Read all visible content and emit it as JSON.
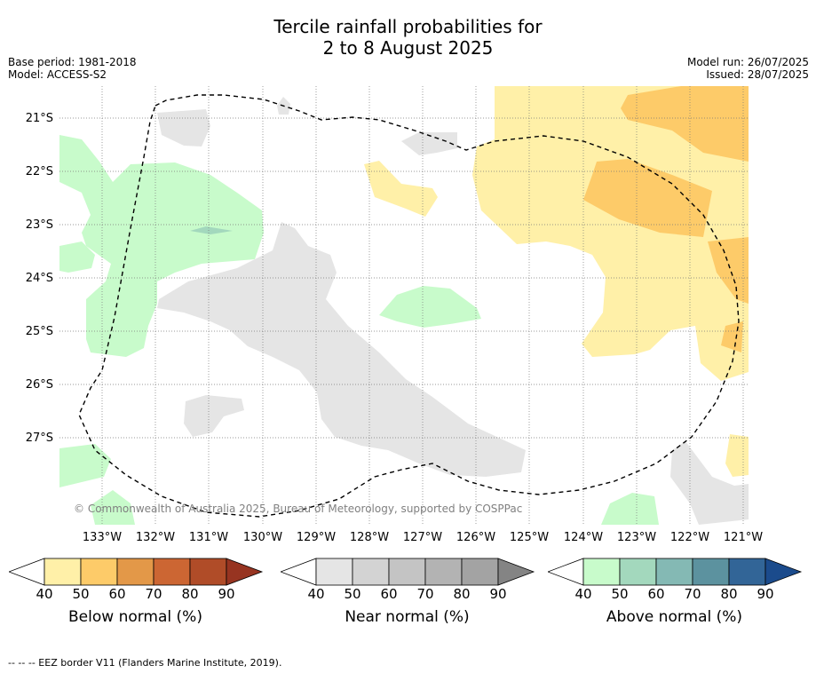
{
  "title_line1": "Tercile rainfall probabilities for",
  "title_line2": "2 to 8 August 2025",
  "base_period": "Base period: 1981-2018",
  "model": "Model: ACCESS-S2",
  "model_run": "Model run: 26/07/2025",
  "issued": "Issued: 28/07/2025",
  "copyright": "© Commonwealth of Australia 2025, Bureau of Meteorology, supported by COSPPac",
  "lat_labels": [
    "21°S",
    "22°S",
    "23°S",
    "24°S",
    "25°S",
    "26°S",
    "27°S"
  ],
  "lon_labels": [
    "133°W",
    "132°W",
    "131°W",
    "130°W",
    "129°W",
    "128°W",
    "127°W",
    "126°W",
    "125°W",
    "124°W",
    "123°W",
    "122°W",
    "121°W"
  ],
  "colorbars": [
    {
      "label": "Below normal (%)",
      "ticks": [
        "40",
        "50",
        "60",
        "70",
        "80",
        "90"
      ],
      "colors": [
        "#fff0a8",
        "#fdcb69",
        "#e39848",
        "#cc6633",
        "#b04c28",
        "#973421"
      ]
    },
    {
      "label": "Near normal (%)",
      "ticks": [
        "40",
        "50",
        "60",
        "70",
        "80",
        "90"
      ],
      "colors": [
        "#e5e5e5",
        "#d3d3d3",
        "#c4c4c4",
        "#b3b3b3",
        "#a3a3a3",
        "#848484"
      ]
    },
    {
      "label": "Above normal (%)",
      "ticks": [
        "40",
        "50",
        "60",
        "70",
        "80",
        "90"
      ],
      "colors": [
        "#c8fbcb",
        "#a3d8bd",
        "#84b9b4",
        "#5c929f",
        "#326597",
        "#1b4b8c"
      ]
    }
  ],
  "footer": "-- -- -- EEZ border V11 (Flanders Marine Institute, 2019)."
}
